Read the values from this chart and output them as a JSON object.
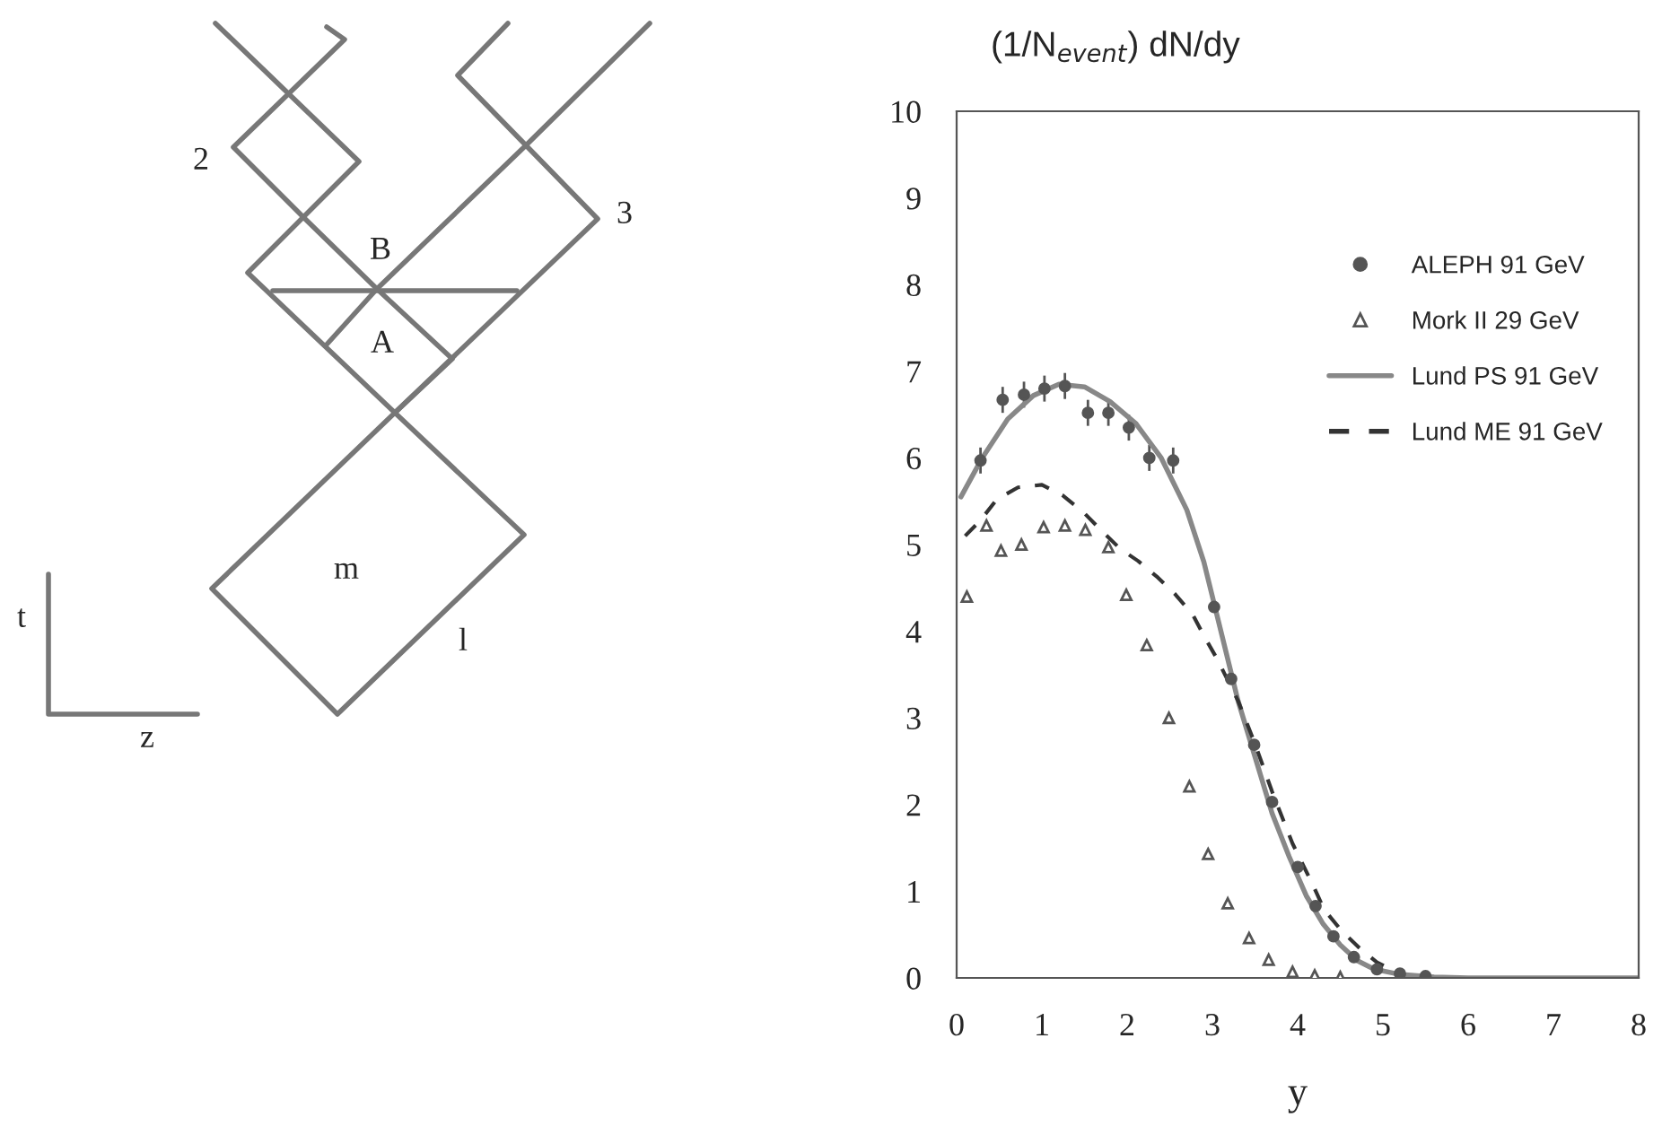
{
  "chart_data": {
    "type": "scatter",
    "ylabel": "(1/N$_{event}$) dN/dy",
    "xlabel": "y",
    "xlim": [
      0,
      8
    ],
    "xticks": [
      0,
      1,
      2,
      3,
      4,
      5,
      6,
      7,
      8
    ],
    "ylim": [
      0,
      10
    ],
    "yticks": [
      0,
      1,
      2,
      3,
      4,
      5,
      6,
      7,
      8,
      9,
      10
    ],
    "grid": false,
    "legend": "top right",
    "series": [
      {
        "name": "ALEPH 91 GeV",
        "marker": "circle",
        "color": "#555555",
        "x": [
          0.28,
          0.54,
          0.79,
          1.03,
          1.27,
          1.54,
          1.78,
          2.02,
          2.26,
          2.54,
          3.02,
          3.22,
          3.49,
          3.7,
          4.0,
          4.21,
          4.42,
          4.66,
          4.93,
          5.2,
          5.5
        ],
        "values": [
          5.97,
          6.67,
          6.73,
          6.8,
          6.83,
          6.52,
          6.52,
          6.35,
          6.0,
          5.97,
          4.28,
          3.45,
          2.69,
          2.03,
          1.28,
          0.83,
          0.48,
          0.24,
          0.1,
          0.05,
          0.02
        ],
        "errors": [
          0.15,
          0.15,
          0.15,
          0.15,
          0.15,
          0.15,
          0.15,
          0.15,
          0.15,
          0.15,
          null,
          null,
          null,
          null,
          null,
          null,
          null,
          null,
          null,
          null,
          null
        ]
      },
      {
        "name": "Mork II 29 GeV",
        "marker": "triangle",
        "color": "#555555",
        "x": [
          0.12,
          0.35,
          0.52,
          0.76,
          1.02,
          1.27,
          1.51,
          1.78,
          1.99,
          2.23,
          2.49,
          2.73,
          2.95,
          3.18,
          3.43,
          3.66,
          3.94,
          4.2,
          4.5
        ],
        "values": [
          4.4,
          5.22,
          4.93,
          5.0,
          5.2,
          5.22,
          5.17,
          4.97,
          4.42,
          3.84,
          3.0,
          2.21,
          1.43,
          0.86,
          0.46,
          0.21,
          0.07,
          0.03,
          0.01
        ]
      },
      {
        "name": "Lund PS 91 GeV",
        "type": "line",
        "line_style": "solid",
        "marker": "none",
        "color": "#888888",
        "x": [
          0.05,
          0.3,
          0.6,
          0.9,
          1.2,
          1.5,
          1.8,
          2.1,
          2.4,
          2.7,
          2.9,
          3.1,
          3.3,
          3.5,
          3.7,
          3.9,
          4.1,
          4.3,
          4.5,
          4.7,
          4.9,
          5.2,
          5.6,
          6.0,
          8.0
        ],
        "values": [
          5.55,
          6.0,
          6.45,
          6.72,
          6.85,
          6.82,
          6.65,
          6.4,
          6.0,
          5.4,
          4.8,
          4.0,
          3.2,
          2.55,
          1.9,
          1.4,
          0.95,
          0.62,
          0.38,
          0.2,
          0.1,
          0.04,
          0.01,
          0.0,
          0.0
        ]
      },
      {
        "name": "Lund ME 91 GeV",
        "type": "line",
        "line_style": "dashed",
        "marker": "none",
        "color": "#333333",
        "x": [
          0.1,
          0.28,
          0.47,
          0.72,
          1.0,
          1.24,
          1.48,
          1.72,
          1.92,
          2.13,
          2.36,
          2.57,
          2.77,
          2.91,
          3.05,
          3.3,
          3.5,
          3.7,
          3.94,
          4.18,
          4.31,
          4.51,
          4.72,
          4.93,
          5.2
        ],
        "values": [
          5.1,
          5.28,
          5.52,
          5.66,
          5.69,
          5.57,
          5.38,
          5.14,
          4.95,
          4.81,
          4.62,
          4.42,
          4.19,
          3.93,
          3.69,
          3.2,
          2.7,
          2.15,
          1.55,
          1.07,
          0.79,
          0.55,
          0.35,
          0.18,
          0.05
        ]
      }
    ],
    "annotations": [
      "2",
      "3",
      "B",
      "A",
      "m",
      "l",
      "t",
      "z"
    ]
  }
}
